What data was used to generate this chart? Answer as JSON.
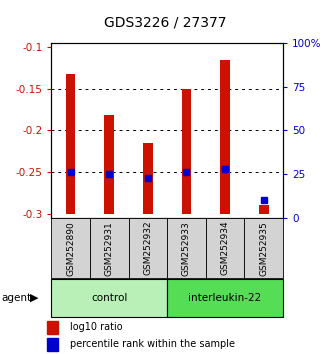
{
  "title": "GDS3226 / 27377",
  "samples": [
    "GSM252890",
    "GSM252931",
    "GSM252932",
    "GSM252933",
    "GSM252934",
    "GSM252935"
  ],
  "log10_ratio": [
    -0.132,
    -0.182,
    -0.215,
    -0.15,
    -0.115,
    -0.29
  ],
  "percentile_rank_pct": [
    26,
    25,
    23,
    26,
    28,
    10
  ],
  "ylim_left": [
    -0.305,
    -0.095
  ],
  "ylim_right": [
    0,
    100
  ],
  "yticks_left": [
    -0.3,
    -0.25,
    -0.2,
    -0.15,
    -0.1
  ],
  "yticks_right": [
    0,
    25,
    50,
    75,
    100
  ],
  "ytick_labels_left": [
    "-0.3",
    "-0.25",
    "-0.2",
    "-0.15",
    "-0.1"
  ],
  "ytick_labels_right": [
    "0",
    "25",
    "50",
    "75",
    "100%"
  ],
  "groups": [
    {
      "label": "control",
      "color": "#b8f0b8",
      "start": 0,
      "end": 3
    },
    {
      "label": "interleukin-22",
      "color": "#55dd55",
      "start": 3,
      "end": 6
    }
  ],
  "bar_color": "#cc1100",
  "dot_color": "#0000cc",
  "bar_bottom": -0.3,
  "label_color_left": "#cc1100",
  "label_color_right": "#0000cc",
  "agent_label": "agent",
  "legend_items": [
    {
      "label": "log10 ratio",
      "color": "#cc1100"
    },
    {
      "label": "percentile rank within the sample",
      "color": "#0000cc"
    }
  ],
  "bar_width": 0.25
}
